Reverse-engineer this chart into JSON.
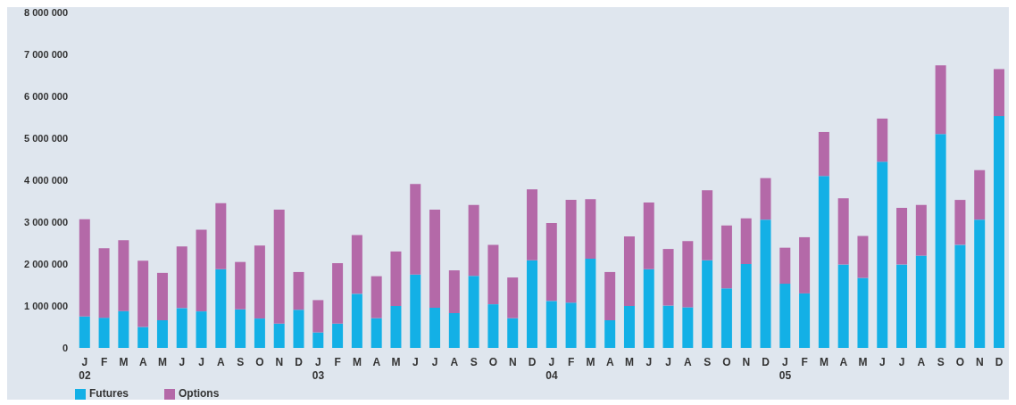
{
  "chart_data": {
    "type": "bar",
    "stacked": true,
    "categories": [
      "J\n02",
      "F",
      "M",
      "A",
      "M",
      "J",
      "J",
      "A",
      "S",
      "O",
      "N",
      "D",
      "J\n03",
      "F",
      "M",
      "A",
      "M",
      "J",
      "J",
      "A",
      "S",
      "O",
      "N",
      "D",
      "J\n04",
      "F",
      "M",
      "A",
      "M",
      "J",
      "J",
      "A",
      "S",
      "O",
      "N",
      "D",
      "J\n05",
      "F",
      "M",
      "A",
      "M",
      "J",
      "J",
      "A",
      "S",
      "O",
      "N",
      "D"
    ],
    "series": [
      {
        "name": "Futures",
        "color": "#13b0e6",
        "values": [
          750000,
          720000,
          880000,
          500000,
          660000,
          950000,
          870000,
          1880000,
          920000,
          700000,
          580000,
          910000,
          370000,
          580000,
          1290000,
          710000,
          1000000,
          1750000,
          960000,
          830000,
          1720000,
          1040000,
          710000,
          2090000,
          1120000,
          1080000,
          2130000,
          660000,
          1000000,
          1880000,
          1010000,
          970000,
          2090000,
          1420000,
          2000000,
          3060000,
          1530000,
          1300000,
          4100000,
          1990000,
          1670000,
          4440000,
          1990000,
          2200000,
          5100000,
          2460000,
          3060000,
          5530000
        ]
      },
      {
        "name": "Options",
        "color": "#b469a8",
        "values": [
          2320000,
          1660000,
          1690000,
          1580000,
          1130000,
          1470000,
          1950000,
          1570000,
          1130000,
          1740000,
          2720000,
          900000,
          770000,
          1440000,
          1400000,
          1000000,
          1300000,
          2160000,
          2340000,
          1020000,
          1690000,
          1420000,
          970000,
          1690000,
          1860000,
          2450000,
          1420000,
          1150000,
          1660000,
          1590000,
          1350000,
          1580000,
          1670000,
          1500000,
          1090000,
          990000,
          860000,
          1340000,
          1050000,
          1580000,
          1000000,
          1030000,
          1350000,
          1210000,
          1640000,
          1070000,
          1180000,
          1120000
        ]
      }
    ],
    "ylim": [
      0,
      8000000
    ],
    "yticks": [
      0,
      {
        "value": 1000000,
        "label": "1 000 000"
      },
      {
        "value": 2000000,
        "label": "2 000 000"
      },
      {
        "value": 3000000,
        "label": "3 000 000"
      },
      {
        "value": 4000000,
        "label": "4 000 000"
      },
      {
        "value": 5000000,
        "label": "5 000 000"
      },
      {
        "value": 6000000,
        "label": "6 000 000"
      },
      {
        "value": 7000000,
        "label": "7 000 000"
      },
      {
        "value": 8000000,
        "label": "8 000 000"
      }
    ],
    "grid": false,
    "legend": "bottom left"
  }
}
